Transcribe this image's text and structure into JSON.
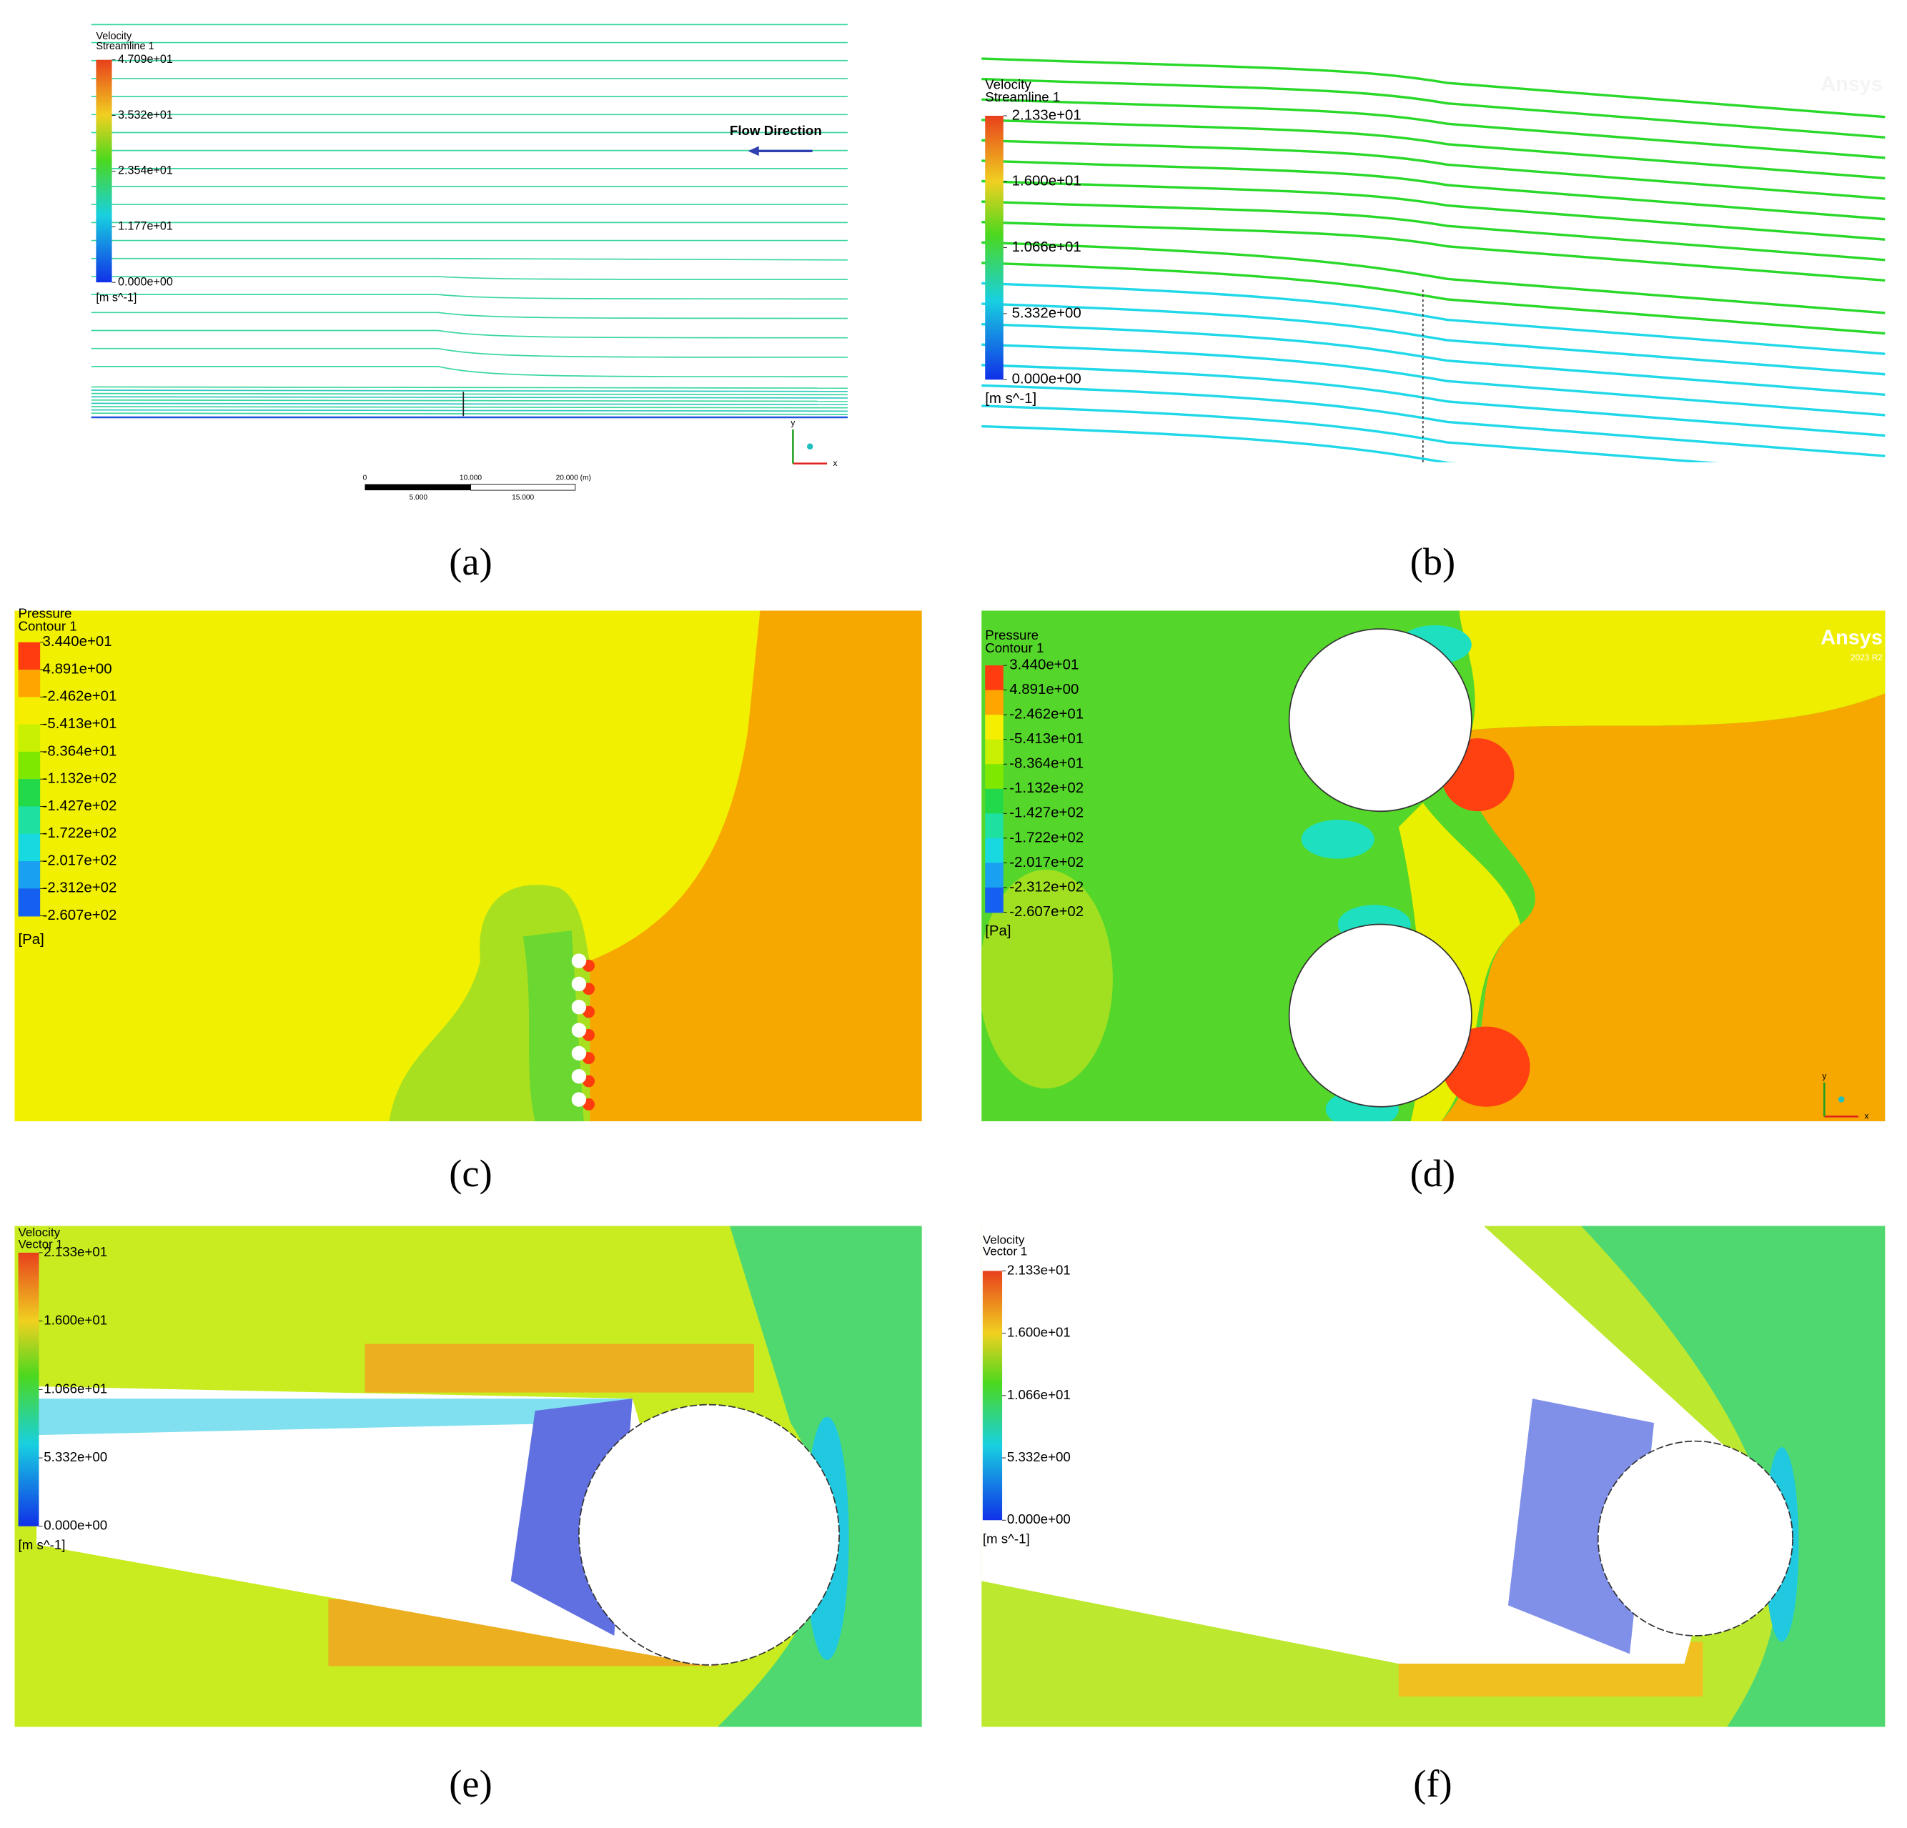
{
  "panels": [
    {
      "label": "(a)",
      "legend": {
        "title": "Velocity",
        "subtitle": "Streamline 1",
        "ticks": [
          "4.709e+01",
          "3.532e+01",
          "2.354e+01",
          "1.177e+01",
          "0.000e+00"
        ],
        "unit": "[m s^-1]"
      },
      "annotation": "Flow Direction",
      "scale_bar": {
        "top": [
          "0",
          "10.000",
          "20.000 (m)"
        ],
        "bottom": [
          "5.000",
          "15.000"
        ]
      },
      "axes": [
        "x",
        "y"
      ]
    },
    {
      "label": "(b)",
      "legend": {
        "title": "Velocity",
        "subtitle": "Streamline 1",
        "ticks": [
          "2.133e+01",
          "1.600e+01",
          "1.066e+01",
          "5.332e+00",
          "0.000e+00"
        ],
        "unit": "[m s^-1]"
      },
      "watermark": "Ansys"
    },
    {
      "label": "(c)",
      "legend": {
        "title": "Pressure",
        "subtitle": "Contour 1",
        "ticks": [
          "3.440e+01",
          "4.891e+00",
          "-2.462e+01",
          "-5.413e+01",
          "-8.364e+01",
          "-1.132e+02",
          "-1.427e+02",
          "-1.722e+02",
          "-2.017e+02",
          "-2.312e+02",
          "-2.607e+02"
        ],
        "unit": "[Pa]"
      }
    },
    {
      "label": "(d)",
      "legend": {
        "title": "Pressure",
        "subtitle": "Contour 1",
        "ticks": [
          "3.440e+01",
          "4.891e+00",
          "-2.462e+01",
          "-5.413e+01",
          "-8.364e+01",
          "-1.132e+02",
          "-1.427e+02",
          "-1.722e+02",
          "-2.017e+02",
          "-2.312e+02",
          "-2.607e+02"
        ],
        "unit": "[Pa]"
      },
      "watermark": "Ansys",
      "version": "2023 R2",
      "axes": [
        "x",
        "y"
      ]
    },
    {
      "label": "(e)",
      "legend": {
        "title": "Velocity",
        "subtitle": "Vector 1",
        "ticks": [
          "2.133e+01",
          "1.600e+01",
          "1.066e+01",
          "5.332e+00",
          "0.000e+00"
        ],
        "unit": "[m s^-1]"
      }
    },
    {
      "label": "(f)",
      "legend": {
        "title": "Velocity",
        "subtitle": "Vector 1",
        "ticks": [
          "2.133e+01",
          "1.600e+01",
          "1.066e+01",
          "5.332e+00",
          "0.000e+00"
        ],
        "unit": "[m s^-1]"
      }
    }
  ]
}
